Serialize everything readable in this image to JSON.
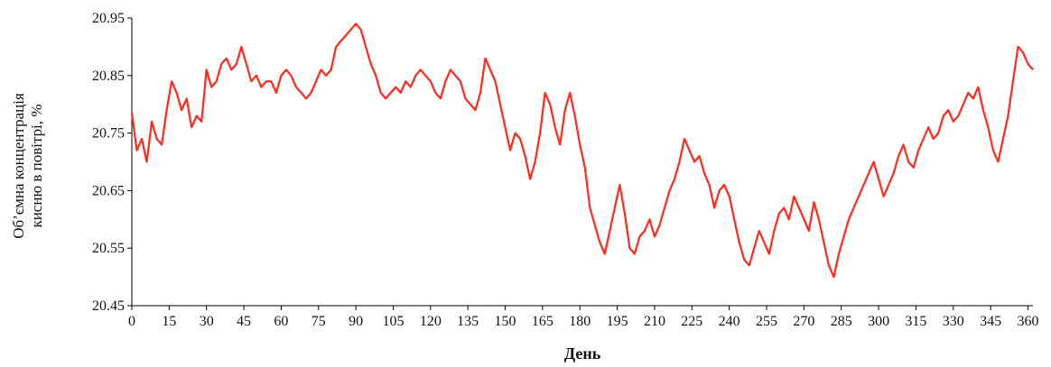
{
  "chart_data": {
    "type": "line",
    "title": "",
    "xlabel": "День",
    "ylabel_lines": [
      "Об’ємна концентрація",
      "кисню в повітрі, %"
    ],
    "xlim": [
      0,
      362
    ],
    "ylim": [
      20.45,
      20.95
    ],
    "xticks": [
      0,
      15,
      30,
      45,
      60,
      75,
      90,
      105,
      120,
      135,
      150,
      165,
      180,
      195,
      210,
      225,
      240,
      255,
      270,
      285,
      300,
      315,
      330,
      345,
      360
    ],
    "yticks": [
      "20.45",
      "20.55",
      "20.65",
      "20.75",
      "20.85",
      "20.95"
    ],
    "grid": false,
    "line_color": "#ff2a1a",
    "series": [
      {
        "x": [
          0,
          2,
          4,
          6,
          8,
          10,
          12,
          14,
          16,
          18,
          20,
          22,
          24,
          26,
          28,
          30,
          32,
          34,
          36,
          38,
          40,
          42,
          44,
          46,
          48,
          50,
          52,
          54,
          56,
          58,
          60,
          62,
          64,
          66,
          68,
          70,
          72,
          74,
          76,
          78,
          80,
          82,
          84,
          86,
          88,
          90,
          92,
          94,
          96,
          98,
          100,
          102,
          104,
          106,
          108,
          110,
          112,
          114,
          116,
          118,
          120,
          122,
          124,
          126,
          128,
          130,
          132,
          134,
          136,
          138,
          140,
          142,
          144,
          146,
          148,
          150,
          152,
          154,
          156,
          158,
          160,
          162,
          164,
          166,
          168,
          170,
          172,
          174,
          176,
          178,
          180,
          182,
          184,
          186,
          188,
          190,
          192,
          194,
          196,
          198,
          200,
          202,
          204,
          206,
          208,
          210,
          212,
          214,
          216,
          218,
          220,
          222,
          224,
          226,
          228,
          230,
          232,
          234,
          236,
          238,
          240,
          242,
          244,
          246,
          248,
          250,
          252,
          254,
          256,
          258,
          260,
          262,
          264,
          266,
          268,
          270,
          272,
          274,
          276,
          278,
          280,
          282,
          284,
          286,
          288,
          290,
          292,
          294,
          296,
          298,
          300,
          302,
          304,
          306,
          308,
          310,
          312,
          314,
          316,
          318,
          320,
          322,
          324,
          326,
          328,
          330,
          332,
          334,
          336,
          338,
          340,
          342,
          344,
          346,
          348,
          350,
          352,
          354,
          356,
          358,
          360,
          362
        ],
        "values": [
          20.785,
          20.72,
          20.74,
          20.7,
          20.77,
          20.74,
          20.73,
          20.79,
          20.84,
          20.82,
          20.79,
          20.81,
          20.76,
          20.78,
          20.77,
          20.86,
          20.83,
          20.84,
          20.87,
          20.88,
          20.86,
          20.87,
          20.9,
          20.87,
          20.84,
          20.85,
          20.83,
          20.84,
          20.84,
          20.82,
          20.85,
          20.86,
          20.85,
          20.83,
          20.82,
          20.81,
          20.82,
          20.84,
          20.86,
          20.85,
          20.86,
          20.9,
          20.91,
          20.92,
          20.93,
          20.94,
          20.93,
          20.9,
          20.87,
          20.85,
          20.82,
          20.81,
          20.82,
          20.83,
          20.82,
          20.84,
          20.83,
          20.85,
          20.86,
          20.85,
          20.84,
          20.82,
          20.81,
          20.84,
          20.86,
          20.85,
          20.84,
          20.81,
          20.8,
          20.79,
          20.82,
          20.88,
          20.86,
          20.84,
          20.8,
          20.76,
          20.72,
          20.75,
          20.74,
          20.71,
          20.67,
          20.7,
          20.75,
          20.82,
          20.8,
          20.76,
          20.73,
          20.79,
          20.82,
          20.78,
          20.73,
          20.69,
          20.62,
          20.59,
          20.56,
          20.54,
          20.58,
          20.62,
          20.66,
          20.61,
          20.55,
          20.54,
          20.57,
          20.58,
          20.6,
          20.57,
          20.59,
          20.62,
          20.65,
          20.67,
          20.7,
          20.74,
          20.72,
          20.7,
          20.71,
          20.68,
          20.66,
          20.62,
          20.65,
          20.66,
          20.64,
          20.6,
          20.56,
          20.53,
          20.52,
          20.55,
          20.58,
          20.56,
          20.54,
          20.58,
          20.61,
          20.62,
          20.6,
          20.64,
          20.62,
          20.6,
          20.58,
          20.63,
          20.6,
          20.56,
          20.52,
          20.5,
          20.54,
          20.57,
          20.6,
          20.62,
          20.64,
          20.66,
          20.68,
          20.7,
          20.67,
          20.64,
          20.66,
          20.68,
          20.71,
          20.73,
          20.7,
          20.69,
          20.72,
          20.74,
          20.76,
          20.74,
          20.75,
          20.78,
          20.79,
          20.77,
          20.78,
          20.8,
          20.82,
          20.81,
          20.83,
          20.79,
          20.76,
          20.72,
          20.7,
          20.74,
          20.78,
          20.84,
          20.9,
          20.89,
          20.87,
          20.86
        ]
      }
    ]
  }
}
